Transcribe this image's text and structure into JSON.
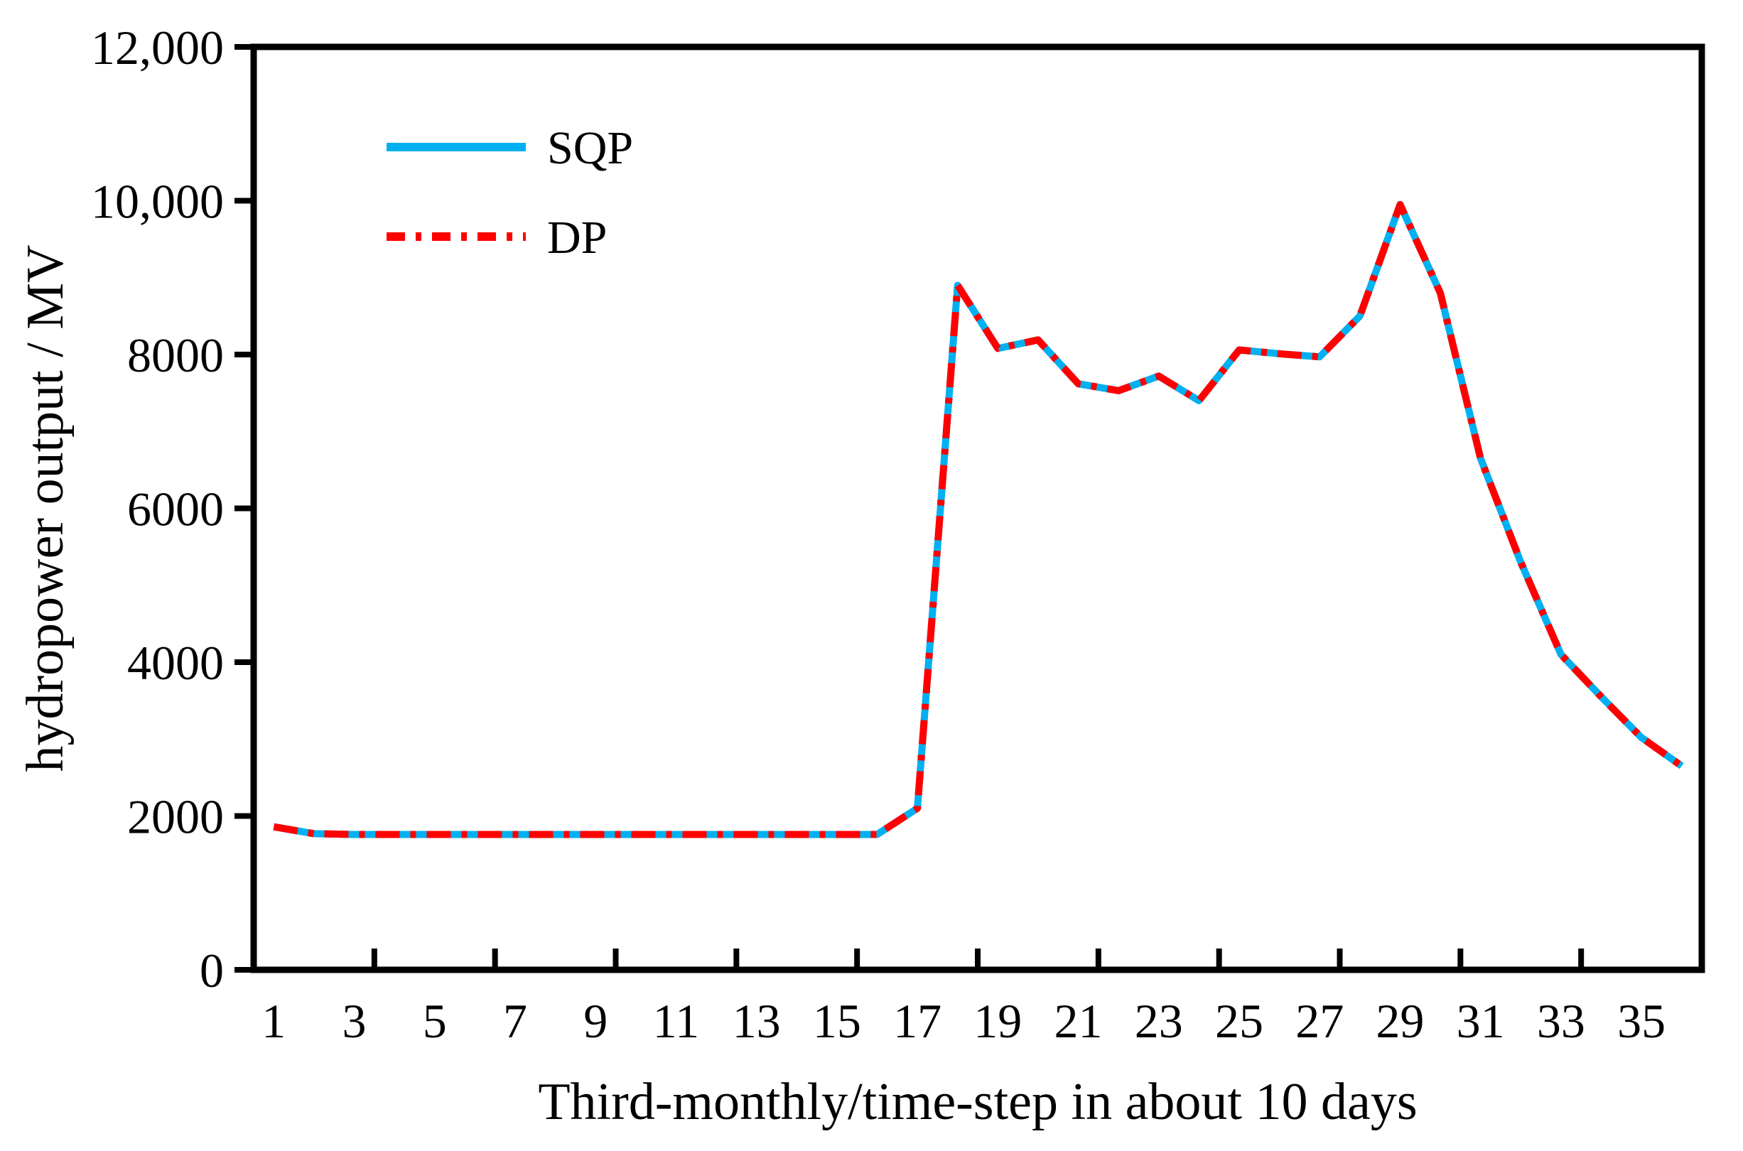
{
  "chart_data": {
    "type": "line",
    "title": "",
    "xlabel": "Third-monthly/time-step in about 10 days",
    "ylabel": "hydropower output / MV",
    "x": [
      1,
      2,
      3,
      4,
      5,
      6,
      7,
      8,
      9,
      10,
      11,
      12,
      13,
      14,
      15,
      16,
      17,
      18,
      19,
      20,
      21,
      22,
      23,
      24,
      25,
      26,
      27,
      28,
      29,
      30,
      31,
      32,
      33,
      34,
      35,
      36
    ],
    "series": [
      {
        "name": "SQP",
        "style": "solid",
        "color": "#00B0F0",
        "values": [
          1860,
          1770,
          1760,
          1760,
          1760,
          1760,
          1760,
          1760,
          1760,
          1760,
          1760,
          1760,
          1760,
          1760,
          1760,
          1760,
          2100,
          8900,
          8080,
          8190,
          7620,
          7530,
          7720,
          7400,
          8060,
          8010,
          7970,
          8500,
          9950,
          8800,
          6650,
          5300,
          4100,
          3550,
          3020,
          2650
        ]
      },
      {
        "name": "DP",
        "style": "dash-dot",
        "color": "#FF0000",
        "values": [
          1860,
          1770,
          1760,
          1760,
          1760,
          1760,
          1760,
          1760,
          1760,
          1760,
          1760,
          1760,
          1760,
          1760,
          1760,
          1760,
          2100,
          8900,
          8080,
          8190,
          7620,
          7530,
          7720,
          7400,
          8060,
          8010,
          7970,
          8500,
          9950,
          8800,
          6650,
          5300,
          4100,
          3550,
          3020,
          2650
        ]
      }
    ],
    "ylim": [
      0,
      12000
    ],
    "yticks": [
      0,
      2000,
      4000,
      6000,
      8000,
      10000,
      12000
    ],
    "ytick_labels": [
      "0",
      "2000",
      "4000",
      "6000",
      "8000",
      "10,000",
      "12,000"
    ],
    "xtick_label_categories": [
      1,
      3,
      5,
      7,
      9,
      11,
      13,
      15,
      17,
      19,
      21,
      23,
      25,
      27,
      29,
      31,
      33,
      35
    ],
    "xtick_labels": [
      "1",
      "3",
      "5",
      "7",
      "9",
      "11",
      "13",
      "15",
      "17",
      "19",
      "21",
      "23",
      "25",
      "27",
      "29",
      "31",
      "33",
      "35"
    ],
    "x_tick_mark_interval": 3,
    "grid": "off",
    "plot_border": "box",
    "legend": {
      "position": "top-left-inside",
      "entries": [
        {
          "label": "SQP",
          "color": "#00B0F0",
          "style": "solid"
        },
        {
          "label": "DP",
          "color": "#FF0000",
          "style": "dash-dot"
        }
      ]
    },
    "colors": {
      "sqp_blue": "#00B0F0",
      "dp_red": "#FF0000",
      "axis_black": "#000000",
      "background": "#ffffff"
    }
  }
}
